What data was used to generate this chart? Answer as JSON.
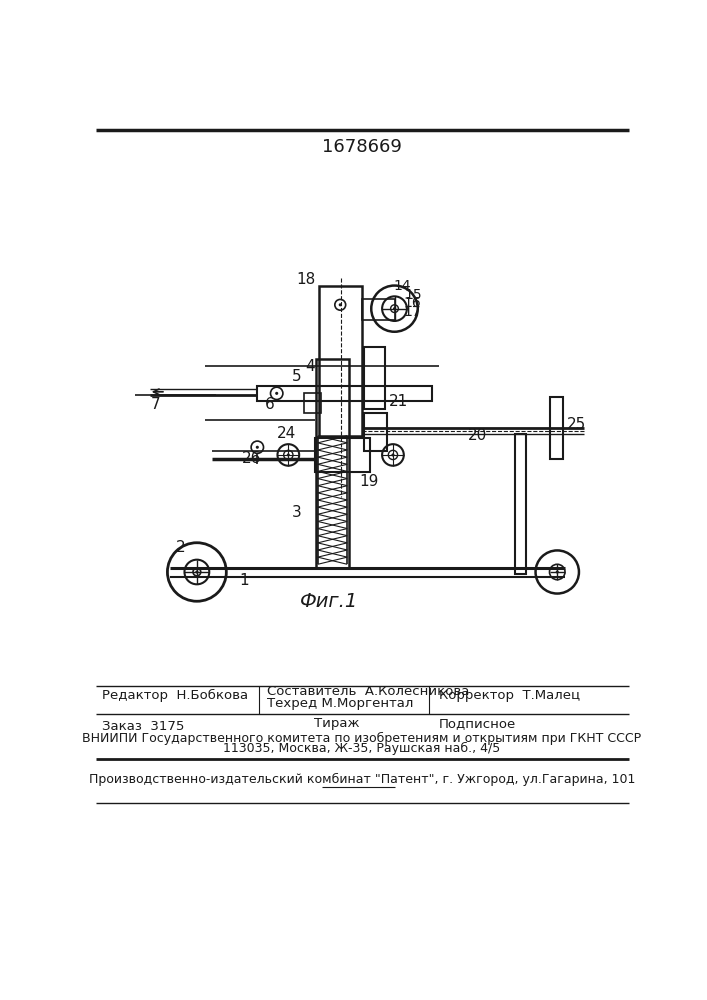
{
  "patent_number": "1678669",
  "figure_label": "Фиг.1",
  "bg_color": "#ffffff",
  "line_color": "#1a1a1a",
  "editor_line": "Редактор  Н.Бобкова",
  "composer_line": "Составитель  А.Колесникова",
  "techred_line": "Техред М.Моргентал",
  "corrector_line": "Корректор  Т.Малец",
  "order_line": "Заказ  3175",
  "tirazh_line": "Тираж",
  "podpisnoe_line": "Подписное",
  "vniiipi_line": "ВНИИПИ Государственного комитета по изобретениям и открытиям при ГКНТ СССР",
  "address_line": "113035, Москва, Ж-35, Раушская наб., 4/5",
  "factory_line": "Производственно-издательский комбинат \"Патент\", г. Ужгород, ул.Гагарина, 101"
}
